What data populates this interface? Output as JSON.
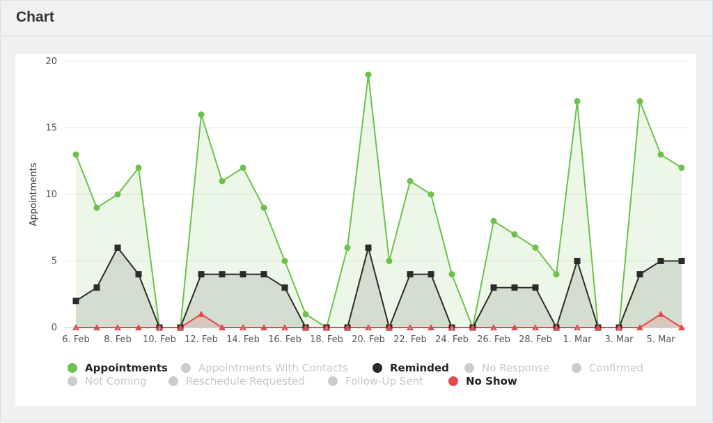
{
  "panel": {
    "title": "Chart"
  },
  "chart_data": {
    "type": "area",
    "x": [
      "6. Feb",
      "7. Feb",
      "8. Feb",
      "9. Feb",
      "10. Feb",
      "11. Feb",
      "12. Feb",
      "13. Feb",
      "14. Feb",
      "15. Feb",
      "16. Feb",
      "17. Feb",
      "18. Feb",
      "19. Feb",
      "20. Feb",
      "21. Feb",
      "22. Feb",
      "23. Feb",
      "24. Feb",
      "25. Feb",
      "26. Feb",
      "27. Feb",
      "28. Feb",
      "29. Feb",
      "1. Mar",
      "2. Mar",
      "3. Mar",
      "4. Mar",
      "5. Mar",
      "6. Mar"
    ],
    "x_tick_labels": [
      "6. Feb",
      "8. Feb",
      "10. Feb",
      "12. Feb",
      "14. Feb",
      "16. Feb",
      "18. Feb",
      "20. Feb",
      "22. Feb",
      "24. Feb",
      "26. Feb",
      "28. Feb",
      "1. Mar",
      "3. Mar",
      "5. Mar"
    ],
    "ylabel": "Appointments",
    "ylim": [
      0,
      20
    ],
    "yticks": [
      0,
      5,
      10,
      15,
      20
    ],
    "grid": true,
    "legend_position": "bottom",
    "series": [
      {
        "name": "Appointments",
        "color": "#6cc24a",
        "marker": "circle",
        "visible": true,
        "values": [
          13,
          9,
          10,
          12,
          0,
          0,
          16,
          11,
          12,
          9,
          5,
          1,
          0,
          6,
          19,
          5,
          11,
          10,
          4,
          0,
          8,
          7,
          6,
          4,
          17,
          0,
          0,
          17,
          13,
          12
        ]
      },
      {
        "name": "Reminded",
        "color": "#2b2b2b",
        "marker": "square",
        "visible": true,
        "values": [
          2,
          3,
          6,
          4,
          0,
          0,
          4,
          4,
          4,
          4,
          3,
          0,
          0,
          0,
          6,
          0,
          4,
          4,
          0,
          0,
          3,
          3,
          3,
          0,
          5,
          0,
          0,
          4,
          5,
          5
        ]
      },
      {
        "name": "No Show",
        "color": "#e5484d",
        "marker": "triangle",
        "visible": true,
        "values": [
          0,
          0,
          0,
          0,
          0,
          0,
          1,
          0,
          0,
          0,
          0,
          0,
          0,
          0,
          0,
          0,
          0,
          0,
          0,
          0,
          0,
          0,
          0,
          0,
          0,
          0,
          0,
          0,
          1,
          0
        ]
      }
    ],
    "legend": [
      {
        "name": "Appointments",
        "color": "#6cc24a",
        "visible": true
      },
      {
        "name": "Appointments With Contacts",
        "color": "#cccccc",
        "visible": false
      },
      {
        "name": "Reminded",
        "color": "#2b2b2b",
        "visible": true
      },
      {
        "name": "No Response",
        "color": "#cccccc",
        "visible": false
      },
      {
        "name": "Confirmed",
        "color": "#cccccc",
        "visible": false
      },
      {
        "name": "Not Coming",
        "color": "#cccccc",
        "visible": false
      },
      {
        "name": "Reschedule Requested",
        "color": "#cccccc",
        "visible": false
      },
      {
        "name": "Follow-Up Sent",
        "color": "#cccccc",
        "visible": false
      },
      {
        "name": "No Show",
        "color": "#e5484d",
        "visible": true
      }
    ]
  }
}
